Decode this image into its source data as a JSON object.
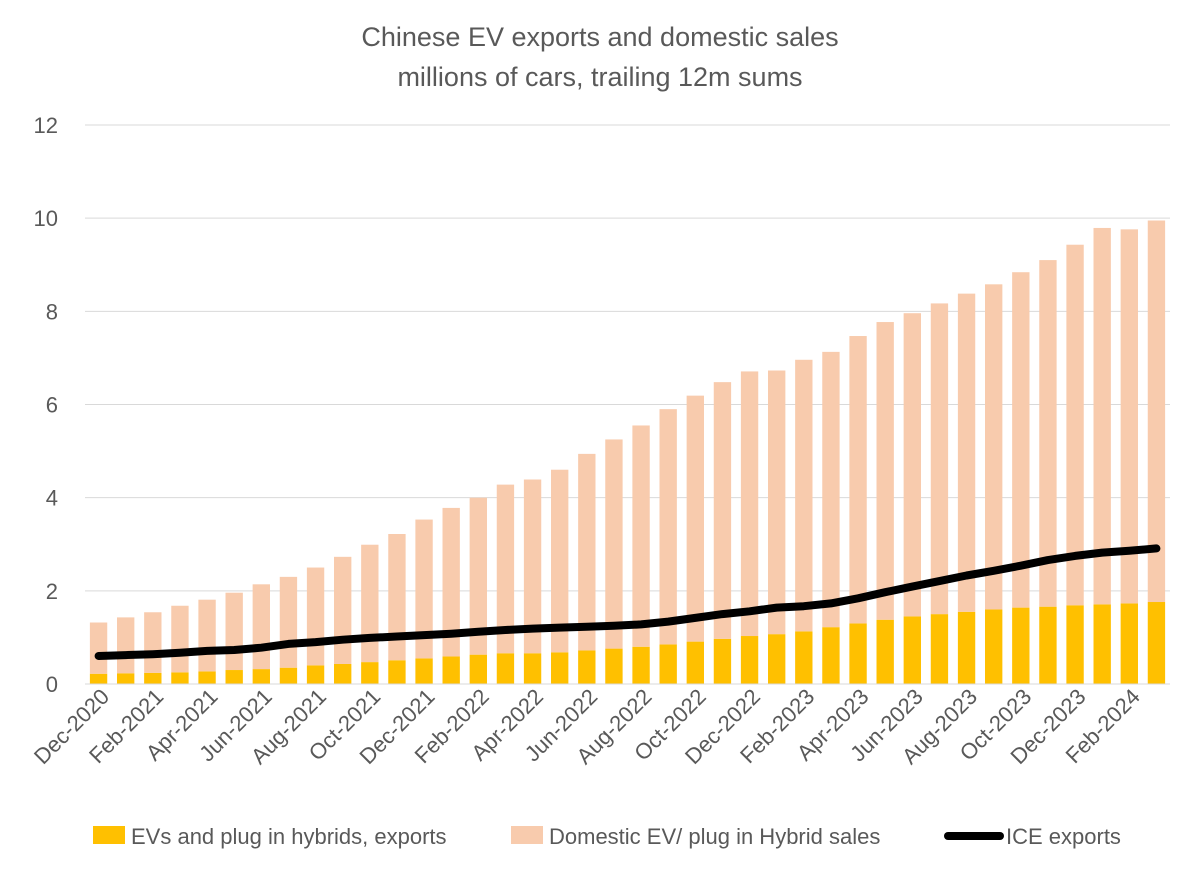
{
  "chart_data": {
    "type": "bar",
    "title": "Chinese EV exports and domestic sales",
    "subtitle": "millions of cars, trailing 12m sums",
    "xlabel": "",
    "ylabel": "",
    "ylim": [
      0,
      12
    ],
    "yticks": [
      "0",
      "2",
      "4",
      "6",
      "8",
      "10",
      "12"
    ],
    "grid": true,
    "stacked": true,
    "categories": [
      "Dec-2020",
      "Jan-2021",
      "Feb-2021",
      "Mar-2021",
      "Apr-2021",
      "May-2021",
      "Jun-2021",
      "Jul-2021",
      "Aug-2021",
      "Sep-2021",
      "Oct-2021",
      "Nov-2021",
      "Dec-2021",
      "Jan-2022",
      "Feb-2022",
      "Mar-2022",
      "Apr-2022",
      "May-2022",
      "Jun-2022",
      "Jul-2022",
      "Aug-2022",
      "Sep-2022",
      "Oct-2022",
      "Nov-2022",
      "Dec-2022",
      "Jan-2023",
      "Feb-2023",
      "Mar-2023",
      "Apr-2023",
      "May-2023",
      "Jun-2023",
      "Jul-2023",
      "Aug-2023",
      "Sep-2023",
      "Oct-2023",
      "Nov-2023",
      "Dec-2023",
      "Jan-2024",
      "Feb-2024",
      "Mar-2024"
    ],
    "tick_labels": [
      "Dec-2020",
      "Feb-2021",
      "Apr-2021",
      "Jun-2021",
      "Aug-2021",
      "Oct-2021",
      "Dec-2021",
      "Feb-2022",
      "Apr-2022",
      "Jun-2022",
      "Aug-2022",
      "Oct-2022",
      "Dec-2022",
      "Feb-2023",
      "Apr-2023",
      "Jun-2023",
      "Aug-2023",
      "Oct-2023",
      "Dec-2023",
      "Feb-2024"
    ],
    "series": [
      {
        "name": "EVs and plug in hybrids, exports",
        "kind": "bar",
        "color": "#FFC000",
        "values": [
          0.22,
          0.23,
          0.24,
          0.25,
          0.27,
          0.3,
          0.32,
          0.35,
          0.4,
          0.43,
          0.47,
          0.51,
          0.55,
          0.59,
          0.63,
          0.66,
          0.66,
          0.68,
          0.72,
          0.76,
          0.8,
          0.85,
          0.91,
          0.97,
          1.03,
          1.07,
          1.13,
          1.22,
          1.3,
          1.38,
          1.45,
          1.5,
          1.55,
          1.6,
          1.64,
          1.66,
          1.69,
          1.71,
          1.73,
          1.76
        ]
      },
      {
        "name": "Domestic EV/ plug in Hybrid sales",
        "kind": "bar",
        "color": "#F8CBAD",
        "values": [
          1.1,
          1.2,
          1.3,
          1.43,
          1.54,
          1.66,
          1.82,
          1.95,
          2.1,
          2.3,
          2.52,
          2.71,
          2.98,
          3.19,
          3.37,
          3.62,
          3.73,
          3.92,
          4.22,
          4.49,
          4.75,
          5.05,
          5.28,
          5.51,
          5.68,
          5.66,
          5.83,
          5.91,
          6.17,
          6.39,
          6.51,
          6.67,
          6.83,
          6.98,
          7.2,
          7.44,
          7.74,
          8.08,
          8.03,
          8.19
        ]
      },
      {
        "name": "ICE exports",
        "kind": "line",
        "color": "#000000",
        "values": [
          0.6,
          0.62,
          0.64,
          0.67,
          0.71,
          0.73,
          0.78,
          0.86,
          0.9,
          0.95,
          0.99,
          1.02,
          1.05,
          1.08,
          1.12,
          1.16,
          1.19,
          1.21,
          1.23,
          1.25,
          1.28,
          1.34,
          1.42,
          1.5,
          1.56,
          1.64,
          1.67,
          1.73,
          1.84,
          1.97,
          2.09,
          2.21,
          2.33,
          2.43,
          2.54,
          2.66,
          2.75,
          2.82,
          2.86,
          2.91
        ]
      }
    ],
    "legend": "bottom"
  }
}
